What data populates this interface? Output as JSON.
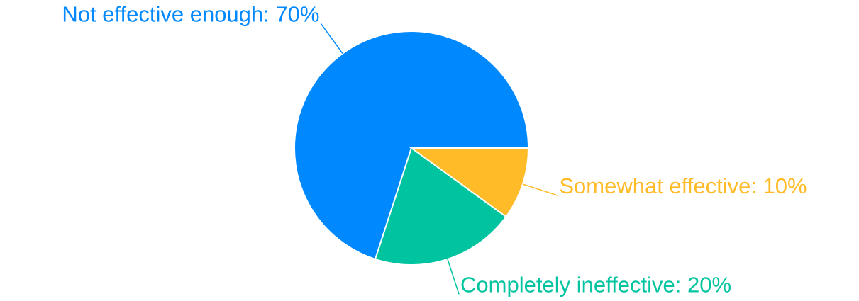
{
  "chart_data": {
    "type": "pie",
    "labels": [
      "Not effective enough: 70%",
      "Completely ineffective: 20%",
      "Somewhat effective: 10%"
    ],
    "values": [
      70,
      20,
      10
    ],
    "colors": [
      "#0088FE",
      "#00C49F",
      "#FFBB28"
    ]
  }
}
